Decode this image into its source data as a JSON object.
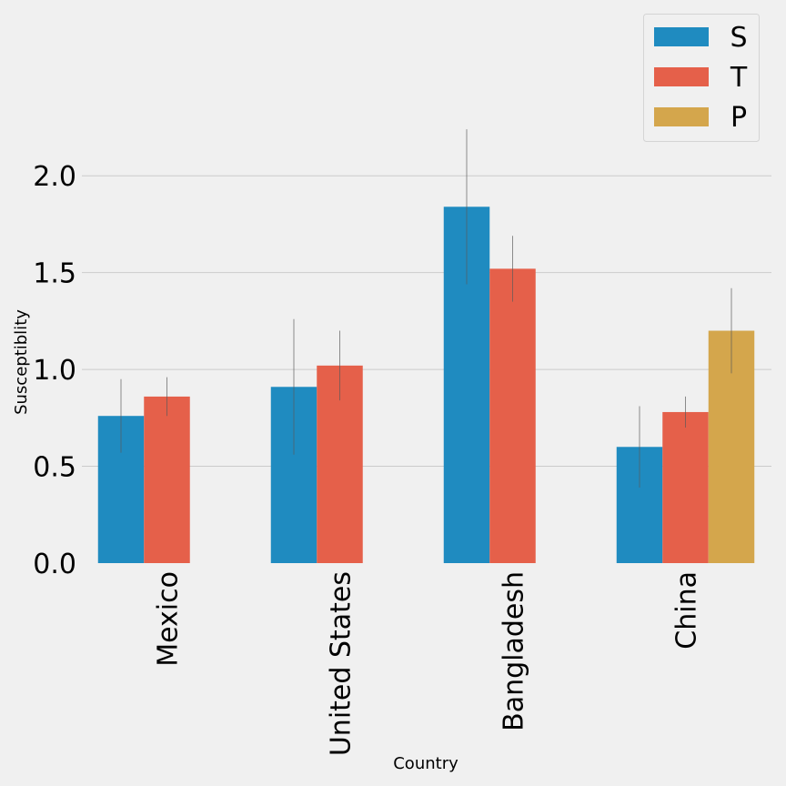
{
  "chart_data": {
    "type": "bar",
    "title": "",
    "xlabel": "Country",
    "ylabel": "Susceptiblity",
    "categories": [
      "Mexico",
      "United States",
      "Bangladesh",
      "China"
    ],
    "series": [
      {
        "name": "S",
        "color": "#1f8bc0",
        "values": [
          0.76,
          0.91,
          1.84,
          0.6
        ],
        "error": [
          0.19,
          0.35,
          0.4,
          0.21
        ]
      },
      {
        "name": "T",
        "color": "#e5604a",
        "values": [
          0.86,
          1.02,
          1.52,
          0.78
        ],
        "error": [
          0.1,
          0.18,
          0.17,
          0.08
        ]
      },
      {
        "name": "P",
        "color": "#d4a64c",
        "values": [
          null,
          null,
          null,
          1.2
        ],
        "error": [
          null,
          null,
          null,
          0.22
        ]
      }
    ],
    "ylim": [
      0,
      2.25
    ],
    "yticks": [
      "0.0",
      "0.5",
      "1.0",
      "1.5",
      "2.0"
    ],
    "grid": "horizontal",
    "legend_position": "top-right"
  }
}
